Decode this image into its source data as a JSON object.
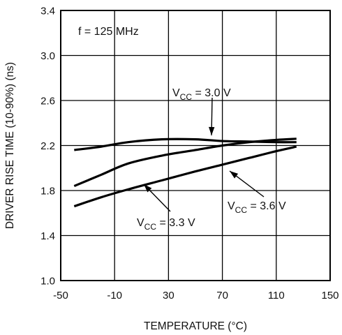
{
  "chart_data": {
    "type": "line",
    "xlabel": "TEMPERATURE (°C)",
    "ylabel": "DRIVER RISE TIME (10-90%) (ns)",
    "xlim": [
      -50,
      150
    ],
    "ylim": [
      1.0,
      3.4
    ],
    "x_ticks": [
      -50,
      -10,
      30,
      70,
      110,
      150
    ],
    "y_ticks": [
      1.0,
      1.4,
      1.8,
      2.2,
      2.6,
      3.0,
      3.4
    ],
    "x_tick_labels": [
      "-50",
      "-10",
      "30",
      "70",
      "110",
      "150"
    ],
    "y_tick_labels": [
      "1.0",
      "1.4",
      "1.8",
      "2.2",
      "2.6",
      "3.0",
      "3.4"
    ],
    "grid": true,
    "condition_label": "f = 125 MHz",
    "series": [
      {
        "name": "VCC = 3.0 V",
        "label_main": "V",
        "label_sub": "CC",
        "label_rest": " = 3.0 V",
        "x": [
          -40,
          -20,
          0,
          25,
          50,
          70,
          90,
          110,
          125
        ],
        "y": [
          2.16,
          2.19,
          2.23,
          2.255,
          2.255,
          2.24,
          2.235,
          2.23,
          2.23
        ]
      },
      {
        "name": "VCC = 3.3 V",
        "label_main": "V",
        "label_sub": "CC",
        "label_rest": " = 3.3 V",
        "x": [
          -40,
          -20,
          0,
          25,
          50,
          70,
          90,
          110,
          125
        ],
        "y": [
          1.84,
          1.94,
          2.04,
          2.11,
          2.16,
          2.2,
          2.23,
          2.25,
          2.26
        ]
      },
      {
        "name": "VCC = 3.6 V",
        "label_main": "V",
        "label_sub": "CC",
        "label_rest": " = 3.6 V",
        "x": [
          -40,
          -20,
          0,
          25,
          50,
          70,
          90,
          110,
          125
        ],
        "y": [
          1.66,
          1.74,
          1.81,
          1.89,
          1.97,
          2.03,
          2.09,
          2.15,
          2.19
        ]
      }
    ]
  }
}
